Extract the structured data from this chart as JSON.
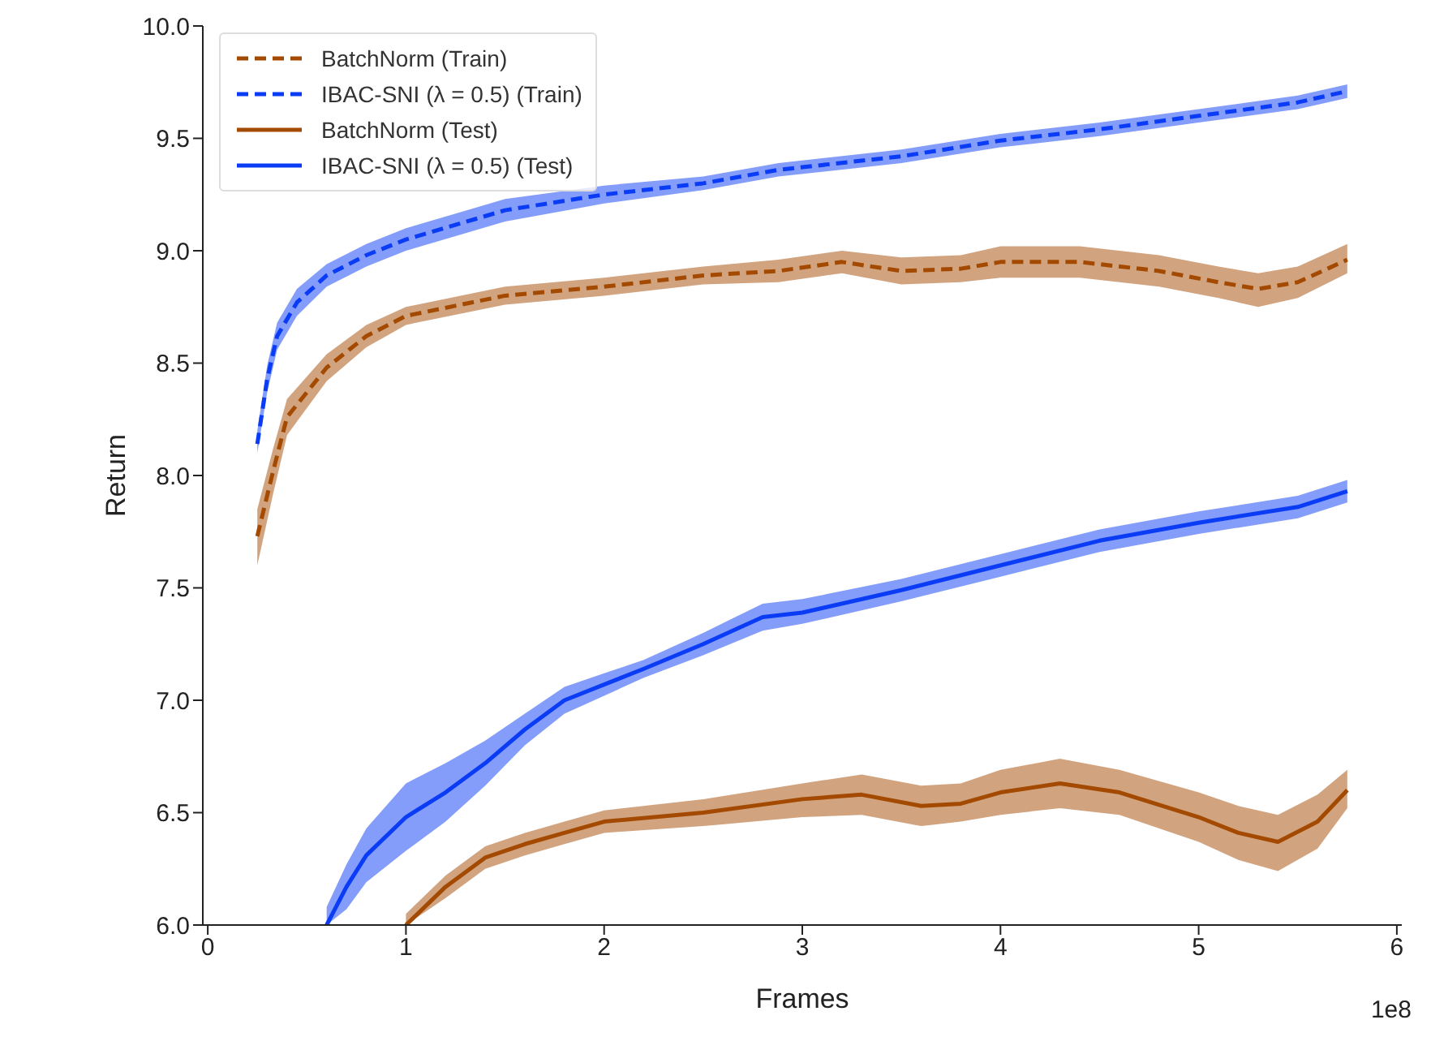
{
  "chart_data": {
    "type": "line",
    "xlabel": "Frames",
    "ylabel": "Return",
    "xlim": [
      -0.025,
      6.025
    ],
    "xticks": [
      0,
      1,
      2,
      3,
      4,
      5,
      6
    ],
    "ylim": [
      6.0,
      10.0
    ],
    "yticks": [
      {
        "value": 6,
        "label": "6.0"
      },
      {
        "value": 6.5,
        "label": "6.5"
      },
      {
        "value": 7,
        "label": "7.0"
      },
      {
        "value": 7.5,
        "label": "7.5"
      },
      {
        "value": 8,
        "label": "8.0"
      },
      {
        "value": 8.5,
        "label": "8.5"
      },
      {
        "value": 9,
        "label": "9.0"
      },
      {
        "value": 9.5,
        "label": "9.5"
      },
      {
        "value": 10,
        "label": "10.0"
      }
    ],
    "legend": "top left",
    "annotations": [
      "1e8"
    ],
    "series": [
      {
        "name": "BatchNorm (Train)",
        "color": "#a34a00",
        "line_style": "dashed",
        "x": [
          0.25,
          0.33,
          0.4,
          0.6,
          0.8,
          1.0,
          1.5,
          2.0,
          2.5,
          2.88,
          3.2,
          3.5,
          3.8,
          4.0,
          4.4,
          4.8,
          5.1,
          5.3,
          5.5,
          5.75
        ],
        "values": [
          7.73,
          8.02,
          8.26,
          8.48,
          8.62,
          8.71,
          8.8,
          8.84,
          8.89,
          8.91,
          8.95,
          8.91,
          8.92,
          8.95,
          8.95,
          8.91,
          8.86,
          8.83,
          8.86,
          8.96
        ],
        "lower": [
          7.6,
          7.92,
          8.18,
          8.42,
          8.57,
          8.67,
          8.76,
          8.8,
          8.85,
          8.86,
          8.9,
          8.85,
          8.86,
          8.88,
          8.88,
          8.84,
          8.79,
          8.75,
          8.79,
          8.9
        ],
        "upper": [
          7.85,
          8.12,
          8.34,
          8.54,
          8.67,
          8.75,
          8.84,
          8.88,
          8.93,
          8.96,
          9.0,
          8.97,
          8.98,
          9.02,
          9.02,
          8.98,
          8.93,
          8.9,
          8.93,
          9.03
        ]
      },
      {
        "name": "IBAC-SNI (λ = 0.5) (Train)",
        "color": "#0a3cf5",
        "line_style": "dashed",
        "x": [
          0.25,
          0.3,
          0.35,
          0.45,
          0.6,
          0.8,
          1.0,
          1.5,
          2.0,
          2.5,
          2.88,
          3.5,
          4.0,
          4.5,
          5.0,
          5.5,
          5.75
        ],
        "values": [
          8.14,
          8.43,
          8.62,
          8.77,
          8.89,
          8.98,
          9.05,
          9.18,
          9.25,
          9.3,
          9.36,
          9.42,
          9.49,
          9.54,
          9.6,
          9.66,
          9.71
        ],
        "lower": [
          8.1,
          8.37,
          8.56,
          8.71,
          8.84,
          8.93,
          9.0,
          9.13,
          9.21,
          9.27,
          9.33,
          9.39,
          9.46,
          9.51,
          9.57,
          9.63,
          9.68
        ],
        "upper": [
          8.2,
          8.49,
          8.68,
          8.83,
          8.94,
          9.03,
          9.1,
          9.23,
          9.29,
          9.33,
          9.39,
          9.45,
          9.52,
          9.57,
          9.63,
          9.69,
          9.74
        ]
      },
      {
        "name": "BatchNorm (Test)",
        "color": "#a34a00",
        "line_style": "solid",
        "x": [
          1.0,
          1.2,
          1.4,
          1.6,
          1.8,
          2.0,
          2.5,
          3.0,
          3.3,
          3.6,
          3.8,
          4.0,
          4.3,
          4.6,
          5.0,
          5.2,
          5.4,
          5.6,
          5.75
        ],
        "values": [
          6.0,
          6.17,
          6.3,
          6.36,
          6.41,
          6.46,
          6.5,
          6.56,
          6.58,
          6.53,
          6.54,
          6.59,
          6.63,
          6.59,
          6.48,
          6.41,
          6.37,
          6.46,
          6.6
        ],
        "lower": [
          6.0,
          6.12,
          6.25,
          6.31,
          6.36,
          6.41,
          6.44,
          6.48,
          6.49,
          6.44,
          6.46,
          6.49,
          6.52,
          6.49,
          6.37,
          6.29,
          6.24,
          6.34,
          6.52
        ],
        "upper": [
          6.05,
          6.22,
          6.35,
          6.41,
          6.46,
          6.51,
          6.56,
          6.63,
          6.67,
          6.62,
          6.63,
          6.69,
          6.74,
          6.69,
          6.59,
          6.53,
          6.49,
          6.58,
          6.69
        ]
      },
      {
        "name": "IBAC-SNI (λ = 0.5) (Test)",
        "color": "#0a3cf5",
        "line_style": "solid",
        "x": [
          0.6,
          0.7,
          0.8,
          1.0,
          1.2,
          1.4,
          1.6,
          1.8,
          2.0,
          2.2,
          2.5,
          2.8,
          3.0,
          3.5,
          4.0,
          4.5,
          5.0,
          5.5,
          5.75
        ],
        "values": [
          6.0,
          6.17,
          6.31,
          6.48,
          6.59,
          6.72,
          6.87,
          7.0,
          7.07,
          7.14,
          7.25,
          7.37,
          7.39,
          7.49,
          7.6,
          7.71,
          7.79,
          7.86,
          7.93
        ],
        "lower": [
          6.0,
          6.07,
          6.19,
          6.33,
          6.46,
          6.62,
          6.8,
          6.94,
          7.02,
          7.1,
          7.2,
          7.31,
          7.34,
          7.44,
          7.55,
          7.66,
          7.74,
          7.81,
          7.88
        ],
        "upper": [
          6.08,
          6.27,
          6.43,
          6.63,
          6.72,
          6.82,
          6.94,
          7.06,
          7.12,
          7.18,
          7.3,
          7.43,
          7.45,
          7.54,
          7.65,
          7.76,
          7.84,
          7.91,
          7.98
        ]
      }
    ]
  }
}
